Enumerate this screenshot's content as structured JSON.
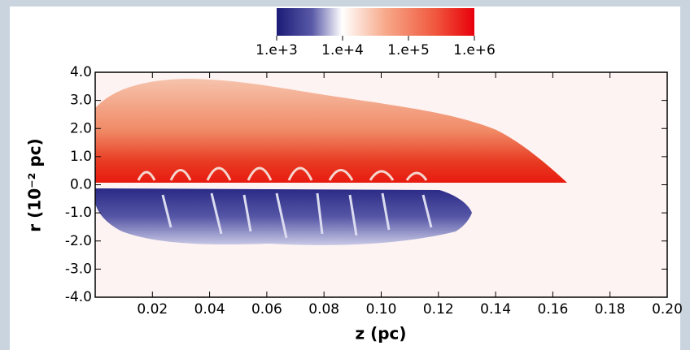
{
  "chart_data": {
    "type": "field",
    "xlabel": "z (pc)",
    "ylabel": "r (10⁻² pc)",
    "xlim": [
      0,
      0.2
    ],
    "ylim": [
      -4,
      4
    ],
    "xticks": [
      0.02,
      0.04,
      0.06,
      0.08,
      {
        "value": 0.1,
        "label": "0.10"
      },
      0.12,
      0.14,
      0.16,
      0.18,
      {
        "value": 0.2,
        "label": "0.20"
      }
    ],
    "yticks": [
      {
        "value": 4,
        "label": "4.0"
      },
      {
        "value": 3,
        "label": "3.0"
      },
      {
        "value": 2,
        "label": "2.0"
      },
      {
        "value": 1,
        "label": "1.0"
      },
      {
        "value": 0,
        "label": "0.0"
      },
      {
        "value": -1,
        "label": "-1.0"
      },
      {
        "value": -2,
        "label": "-2.0"
      },
      {
        "value": -3,
        "label": "-3.0"
      },
      {
        "value": -4,
        "label": "-4.0"
      }
    ],
    "colorbar": {
      "lim": [
        1000,
        1000000
      ],
      "log": true,
      "ticks": [
        {
          "value": 1000,
          "label": "1.e+3"
        },
        {
          "value": 10000,
          "label": "1.e+4"
        },
        {
          "value": 100000,
          "label": "1.e+5"
        },
        {
          "value": 1000000,
          "label": "1.e+6"
        }
      ]
    }
  }
}
